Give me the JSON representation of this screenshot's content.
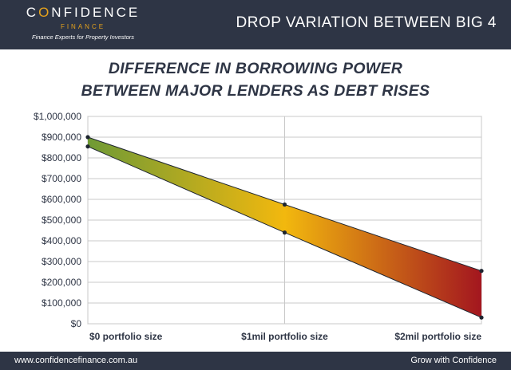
{
  "header": {
    "logo_prefix": "C",
    "logo_o": "O",
    "logo_suffix": "NFIDENCE",
    "logo_sub": "FINANCE",
    "logo_tagline": "Finance Experts for Property Investors",
    "title": "DROP VARIATION BETWEEN BIG 4"
  },
  "footer": {
    "website": "www.confidencefinance.com.au",
    "slogan": "Grow with Confidence"
  },
  "colors": {
    "navy": "#2e3545",
    "gold": "#e5a21c",
    "gradient_start": "#6f9a35",
    "gradient_mid": "#f2b80e",
    "gradient_end": "#a3161f"
  },
  "chart_data": {
    "type": "area",
    "title_line1": "DIFFERENCE IN BORROWING POWER",
    "title_line2": "BETWEEN MAJOR LENDERS AS DEBT RISES",
    "categories": [
      "$0 portfolio size",
      "$1mil portfolio size",
      "$2mil portfolio size"
    ],
    "series": [
      {
        "values": [
          900000,
          575000,
          255000
        ]
      },
      {
        "values": [
          855000,
          440000,
          30000
        ]
      }
    ],
    "ylim": [
      0,
      1000000
    ],
    "yticks": [
      {
        "value": 0,
        "label": "$0"
      },
      {
        "value": 100000,
        "label": "$100,000"
      },
      {
        "value": 200000,
        "label": "$200,000"
      },
      {
        "value": 300000,
        "label": "$300,000"
      },
      {
        "value": 400000,
        "label": "$400,000"
      },
      {
        "value": 500000,
        "label": "$500,000"
      },
      {
        "value": 600000,
        "label": "$600,000"
      },
      {
        "value": 700000,
        "label": "$700,000"
      },
      {
        "value": 800000,
        "label": "$800,000"
      },
      {
        "value": 900000,
        "label": "$900,000"
      },
      {
        "value": 1000000,
        "label": "$1,000,000"
      }
    ],
    "grid": true,
    "legend": "none"
  }
}
